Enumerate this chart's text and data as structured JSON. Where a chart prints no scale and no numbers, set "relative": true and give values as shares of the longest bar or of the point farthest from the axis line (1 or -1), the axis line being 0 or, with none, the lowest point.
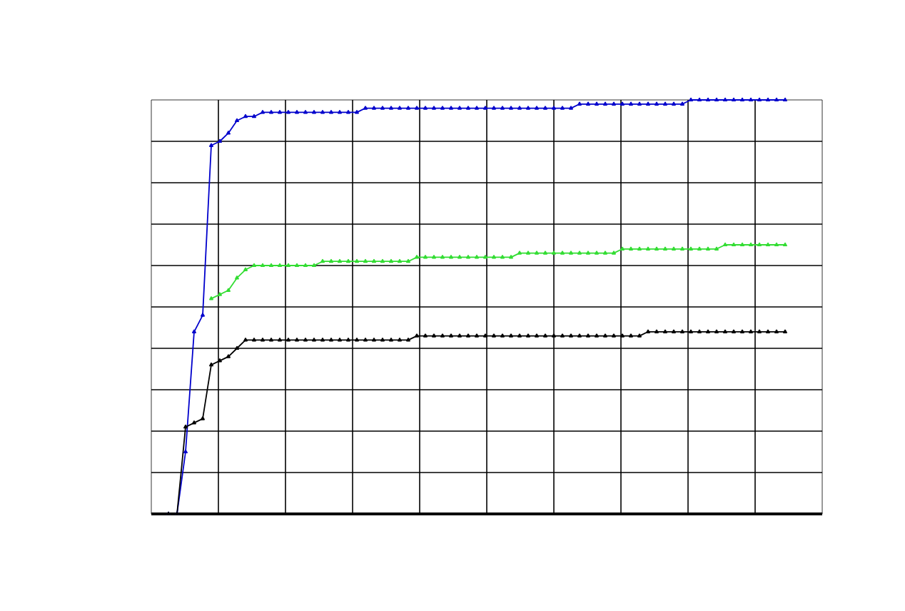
{
  "chart_data": {
    "type": "line",
    "relative": true,
    "grid": true,
    "marker": "triangle",
    "line_style": "solid",
    "categories": [
      null,
      null,
      null,
      null,
      null,
      null,
      null,
      null,
      null,
      null,
      null,
      null,
      null,
      null,
      null,
      null,
      null,
      null,
      null,
      null,
      null,
      null,
      null,
      null,
      null,
      null,
      null,
      null,
      null,
      null,
      null,
      null,
      null,
      null,
      null,
      null,
      null,
      null,
      null,
      null,
      null,
      null,
      null,
      null,
      null,
      null,
      null,
      null,
      null,
      null,
      null,
      null,
      null,
      null,
      null,
      null,
      null,
      null,
      null,
      null,
      null,
      null,
      null,
      null,
      null,
      null,
      null,
      null,
      null,
      null,
      null,
      null,
      null
    ],
    "series": [
      {
        "color": "#0000cc",
        "values": [
          0,
          0,
          0.15,
          0.44,
          0.48,
          0.89,
          0.9,
          0.92,
          0.95,
          0.96,
          0.96,
          0.97,
          0.97,
          0.97,
          0.97,
          0.97,
          0.97,
          0.97,
          0.97,
          0.97,
          0.97,
          0.97,
          0.97,
          0.98,
          0.98,
          0.98,
          0.98,
          0.98,
          0.98,
          0.98,
          0.98,
          0.98,
          0.98,
          0.98,
          0.98,
          0.98,
          0.98,
          0.98,
          0.98,
          0.98,
          0.98,
          0.98,
          0.98,
          0.98,
          0.98,
          0.98,
          0.98,
          0.98,
          0.99,
          0.99,
          0.99,
          0.99,
          0.99,
          0.99,
          0.99,
          0.99,
          0.99,
          0.99,
          0.99,
          0.99,
          0.99,
          1,
          1,
          1,
          1,
          1,
          1,
          1,
          1,
          1,
          1,
          1,
          1
        ]
      },
      {
        "color": "#000000",
        "values": [
          0,
          0,
          0.21,
          0.22,
          0.23,
          0.36,
          0.37,
          0.38,
          0.4,
          0.42,
          0.42,
          0.42,
          0.42,
          0.42,
          0.42,
          0.42,
          0.42,
          0.42,
          0.42,
          0.42,
          0.42,
          0.42,
          0.42,
          0.42,
          0.42,
          0.42,
          0.42,
          0.42,
          0.42,
          0.43,
          0.43,
          0.43,
          0.43,
          0.43,
          0.43,
          0.43,
          0.43,
          0.43,
          0.43,
          0.43,
          0.43,
          0.43,
          0.43,
          0.43,
          0.43,
          0.43,
          0.43,
          0.43,
          0.43,
          0.43,
          0.43,
          0.43,
          0.43,
          0.43,
          0.43,
          0.43,
          0.44,
          0.44,
          0.44,
          0.44,
          0.44,
          0.44,
          0.44,
          0.44,
          0.44,
          0.44,
          0.44,
          0.44,
          0.44,
          0.44,
          0.44,
          0.44,
          0.44
        ]
      },
      {
        "color": "#33dd33",
        "values": [
          null,
          null,
          null,
          null,
          null,
          0.52,
          0.53,
          0.54,
          0.57,
          0.59,
          0.6,
          0.6,
          0.6,
          0.6,
          0.6,
          0.6,
          0.6,
          0.6,
          0.61,
          0.61,
          0.61,
          0.61,
          0.61,
          0.61,
          0.61,
          0.61,
          0.61,
          0.61,
          0.61,
          0.62,
          0.62,
          0.62,
          0.62,
          0.62,
          0.62,
          0.62,
          0.62,
          0.62,
          0.62,
          0.62,
          0.62,
          0.63,
          0.63,
          0.63,
          0.63,
          0.63,
          0.63,
          0.63,
          0.63,
          0.63,
          0.63,
          0.63,
          0.63,
          0.64,
          0.64,
          0.64,
          0.64,
          0.64,
          0.64,
          0.64,
          0.64,
          0.64,
          0.64,
          0.64,
          0.64,
          0.65,
          0.65,
          0.65,
          0.65,
          0.65,
          0.65,
          0.65,
          0.65
        ]
      }
    ]
  }
}
